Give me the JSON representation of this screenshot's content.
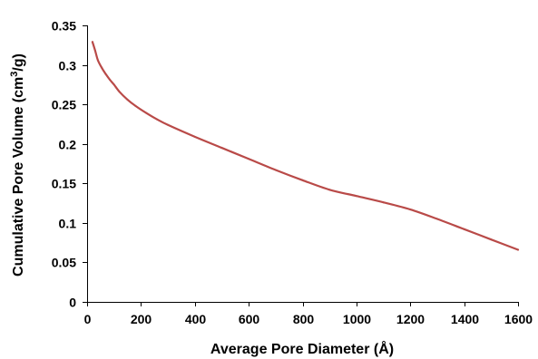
{
  "chart_data": {
    "type": "line",
    "title": "",
    "xlabel": "Average Pore Diameter (Å)",
    "ylabel_prefix": "Cumulative Pore Volume (cm",
    "ylabel_sup": "3",
    "ylabel_suffix": "/g)",
    "xlim": [
      0,
      1600
    ],
    "ylim": [
      0,
      0.35
    ],
    "x_ticks": [
      0,
      200,
      400,
      600,
      800,
      1000,
      1200,
      1400,
      1600
    ],
    "x_tick_labels": [
      "0",
      "200",
      "400",
      "600",
      "800",
      "1000",
      "1200",
      "1400",
      "1600"
    ],
    "y_ticks": [
      0,
      0.05,
      0.1,
      0.15,
      0.2,
      0.25,
      0.3,
      0.35
    ],
    "y_tick_labels": [
      "0",
      "0.05",
      "0.1",
      "0.15",
      "0.2",
      "0.25",
      "0.3",
      "0.35"
    ],
    "grid": false,
    "legend": "none",
    "series": [
      {
        "color": "#b94a48",
        "x": [
          20,
          30,
          40,
          55,
          70,
          85,
          100,
          120,
          150,
          180,
          220,
          260,
          300,
          400,
          500,
          600,
          700,
          800,
          900,
          1000,
          1100,
          1200,
          1300,
          1400,
          1500,
          1600
        ],
        "y": [
          0.329,
          0.318,
          0.306,
          0.296,
          0.288,
          0.281,
          0.275,
          0.266,
          0.256,
          0.248,
          0.239,
          0.231,
          0.224,
          0.209,
          0.195,
          0.181,
          0.167,
          0.154,
          0.142,
          0.134,
          0.126,
          0.117,
          0.105,
          0.092,
          0.079,
          0.066
        ]
      }
    ]
  }
}
